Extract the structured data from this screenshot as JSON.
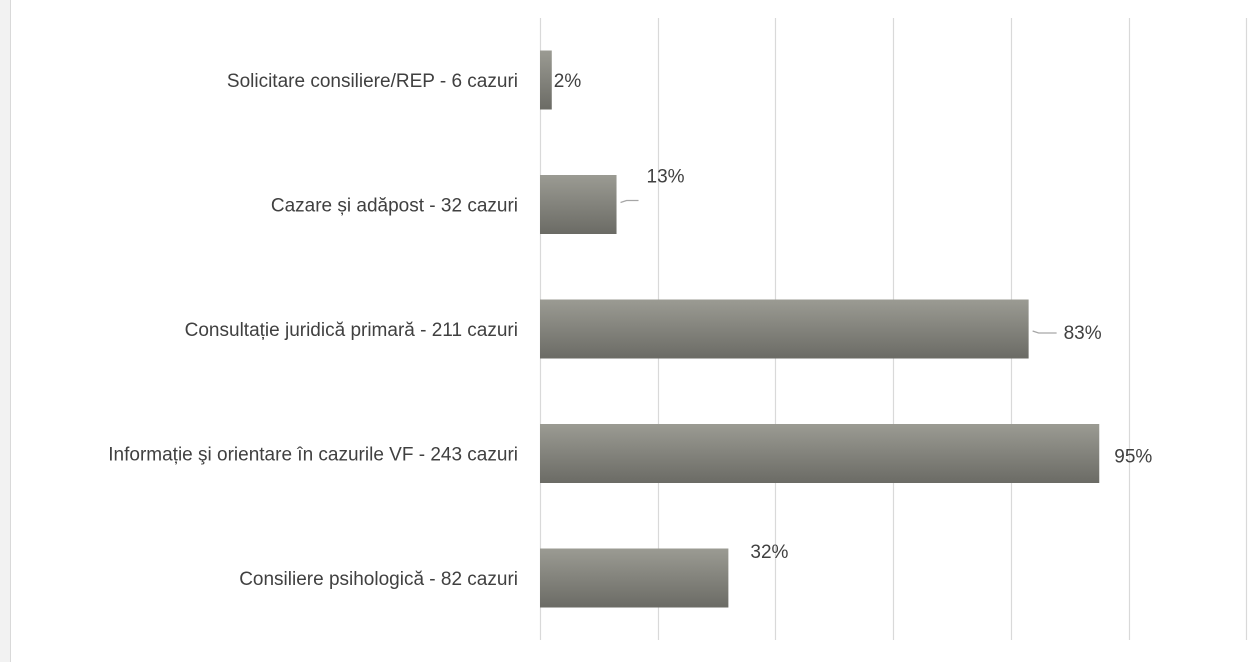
{
  "chart_data": {
    "type": "bar",
    "orientation": "horizontal",
    "categories": [
      "Solicitare consiliere/REP - 6 cazuri",
      "Cazare și adăpost - 32 cazuri",
      "Consultație juridică primară - 211 cazuri",
      "Informație şi orientare în cazurile VF - 243 cazuri",
      "Consiliere psihologică - 82 cazuri"
    ],
    "values": [
      2,
      13,
      83,
      95,
      32
    ],
    "data_labels": [
      "2%",
      "13%",
      "83%",
      "95%",
      "32%"
    ],
    "xlim": [
      0,
      120
    ],
    "grid": true,
    "title": "",
    "xlabel": "",
    "ylabel": "",
    "colors": {
      "bar_top": "#9b9b93",
      "bar_bottom": "#6b6b65",
      "gridline": "#d9d9d9",
      "text": "#404040",
      "leader": "#a6a6a6"
    }
  }
}
